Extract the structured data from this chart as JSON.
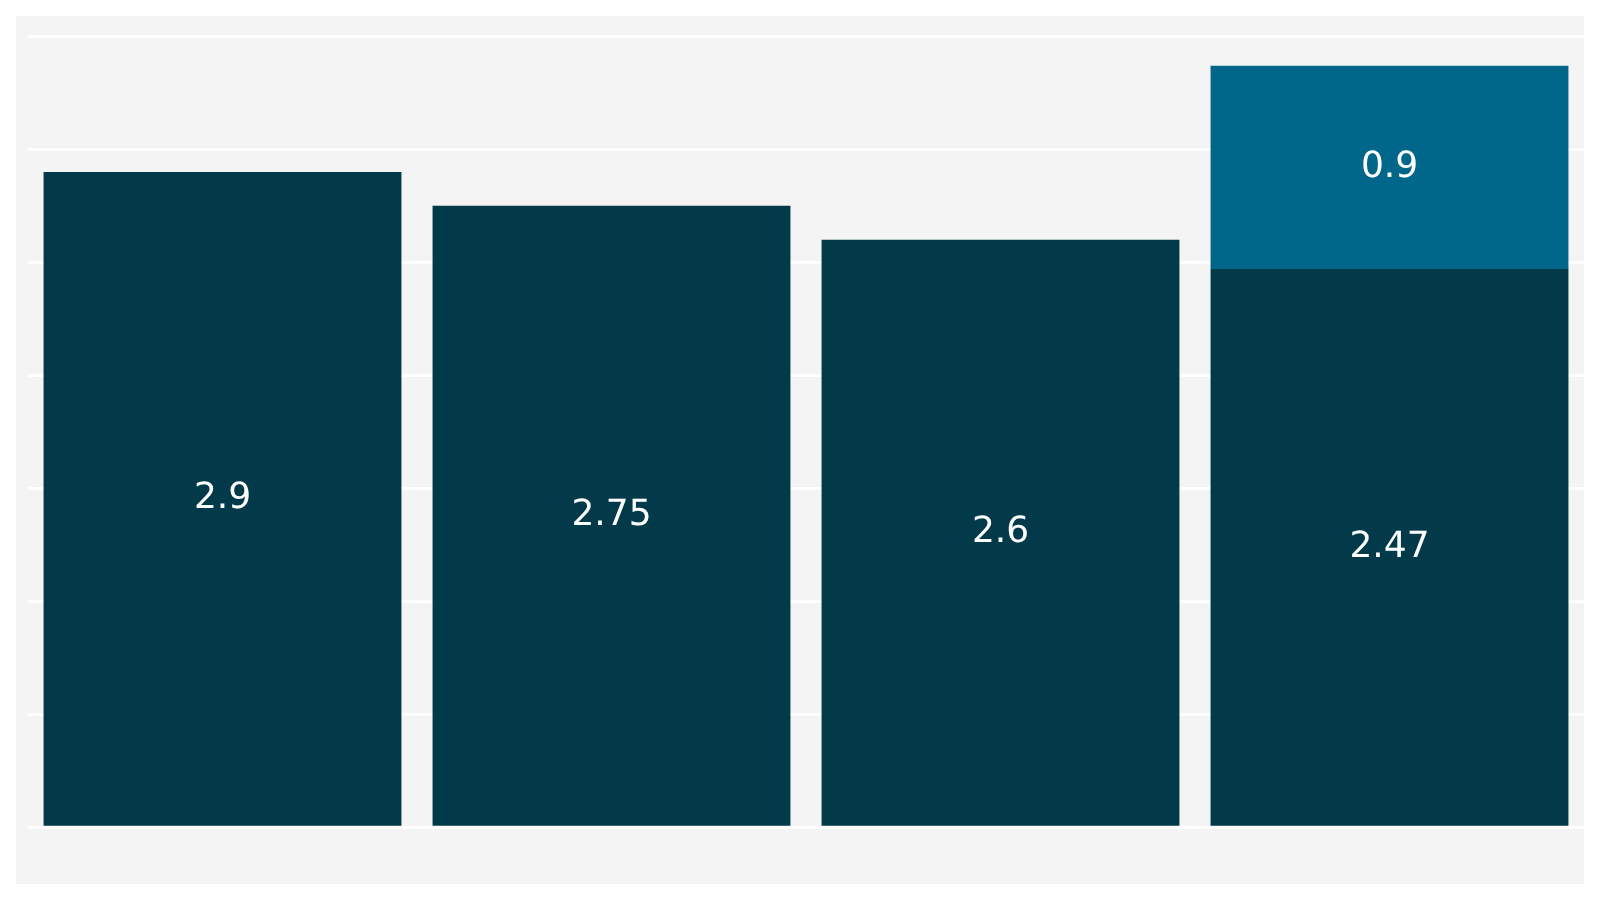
{
  "chart_data": {
    "type": "bar",
    "stacked": true,
    "categories": [
      null,
      null,
      null,
      null
    ],
    "series": [
      {
        "color": "#023a4a",
        "values": [
          2.9,
          2.75,
          2.6,
          2.47
        ],
        "value_labels": [
          "2.9",
          "2.75",
          "2.6",
          "2.47"
        ]
      },
      {
        "color": "#00678a",
        "values": [
          null,
          null,
          null,
          0.9
        ],
        "value_labels": [
          null,
          null,
          null,
          "0.9"
        ]
      }
    ],
    "ylim": [
      0,
      3.5
    ],
    "yticks": [
      {
        "value": 0,
        "label": null
      },
      {
        "value": 0.5,
        "label": null
      },
      {
        "value": 1,
        "label": null
      },
      {
        "value": 1.5,
        "label": null
      },
      {
        "value": 2,
        "label": null
      },
      {
        "value": 2.5,
        "label": null
      },
      {
        "value": 3,
        "label": null
      },
      {
        "value": 3.5,
        "label": null
      }
    ],
    "grid": "y",
    "legend": false
  }
}
